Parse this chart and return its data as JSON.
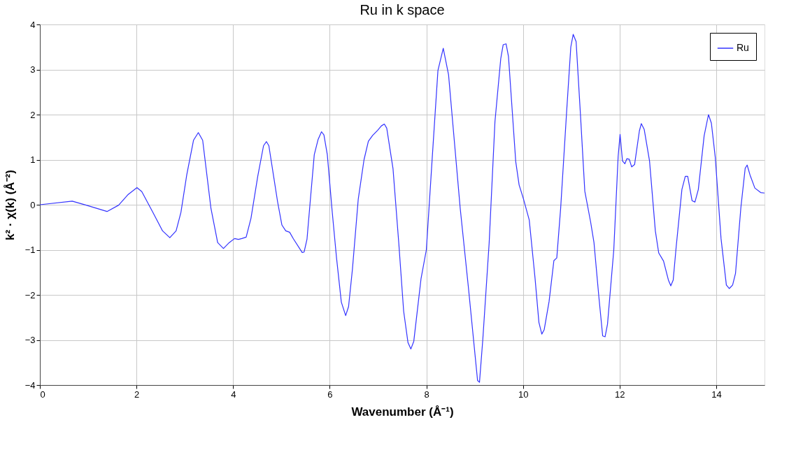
{
  "chart_data": {
    "type": "line",
    "title": "Ru in k space",
    "xlabel": "Wavenumber    (Å⁻¹)",
    "ylabel": "k² · χ(k)    (Å⁻²)",
    "xlim": [
      0,
      15
    ],
    "xticks": [
      0,
      2,
      4,
      6,
      8,
      10,
      12,
      14
    ],
    "ylim": [
      -4,
      4
    ],
    "yticks": [
      -4,
      -3,
      -2,
      -1,
      0,
      1,
      2,
      3,
      4
    ],
    "grid": true,
    "legend": "top right",
    "line_style": "solid",
    "marker": "none",
    "series": [
      {
        "name": "Ru",
        "color": "#3333ff",
        "x": [
          0,
          0.67,
          0.96,
          1.39,
          1.63,
          1.82,
          2.01,
          2.11,
          2.34,
          2.54,
          2.69,
          2.82,
          2.92,
          3.04,
          3.18,
          3.28,
          3.37,
          3.54,
          3.68,
          3.8,
          3.92,
          4.03,
          4.11,
          4.18,
          4.27,
          4.37,
          4.51,
          4.63,
          4.69,
          4.74,
          4.92,
          5.01,
          5.09,
          5.17,
          5.25,
          5.43,
          5.47,
          5.53,
          5.6,
          5.68,
          5.76,
          5.83,
          5.88,
          5.95,
          6.05,
          6.14,
          6.24,
          6.33,
          6.39,
          6.47,
          6.59,
          6.71,
          6.8,
          6.89,
          6.99,
          7.07,
          7.13,
          7.18,
          7.31,
          7.43,
          7.53,
          7.62,
          7.68,
          7.74,
          7.89,
          8.0,
          8.12,
          8.24,
          8.35,
          8.46,
          8.7,
          8.87,
          9.06,
          9.1,
          9.17,
          9.3,
          9.42,
          9.54,
          9.59,
          9.65,
          9.7,
          9.85,
          9.92,
          10.01,
          10.13,
          10.25,
          10.33,
          10.39,
          10.44,
          10.54,
          10.64,
          10.7,
          10.78,
          10.9,
          10.99,
          11.04,
          11.1,
          11.19,
          11.28,
          11.4,
          11.47,
          11.57,
          11.65,
          11.7,
          11.75,
          11.88,
          11.97,
          12.01,
          12.06,
          12.11,
          12.15,
          12.2,
          12.25,
          12.31,
          12.41,
          12.45,
          12.51,
          12.62,
          12.74,
          12.81,
          12.91,
          13.01,
          13.06,
          13.11,
          13.17,
          13.29,
          13.36,
          13.41,
          13.5,
          13.56,
          13.63,
          13.75,
          13.84,
          13.9,
          13.98,
          14.1,
          14.21,
          14.27,
          14.34,
          14.4,
          14.51,
          14.6,
          14.64,
          14.7,
          14.8,
          14.92,
          15
        ],
        "values": [
          0,
          0.08,
          -0.01,
          -0.15,
          -0.01,
          0.22,
          0.38,
          0.29,
          -0.17,
          -0.58,
          -0.73,
          -0.58,
          -0.17,
          0.66,
          1.43,
          1.6,
          1.43,
          -0.07,
          -0.84,
          -0.97,
          -0.84,
          -0.75,
          -0.77,
          -0.75,
          -0.72,
          -0.3,
          0.63,
          1.31,
          1.4,
          1.31,
          0.07,
          -0.45,
          -0.58,
          -0.61,
          -0.76,
          -1.06,
          -1.05,
          -0.76,
          0.12,
          1.11,
          1.45,
          1.62,
          1.55,
          1.11,
          -0.14,
          -1.17,
          -2.16,
          -2.46,
          -2.26,
          -1.43,
          0.12,
          1.0,
          1.41,
          1.54,
          1.65,
          1.75,
          1.79,
          1.7,
          0.8,
          -0.86,
          -2.36,
          -3.06,
          -3.2,
          -3.03,
          -1.64,
          -1.0,
          1.01,
          2.98,
          3.47,
          2.88,
          -0.07,
          -1.83,
          -3.9,
          -3.94,
          -2.97,
          -0.85,
          1.84,
          3.24,
          3.55,
          3.57,
          3.29,
          0.96,
          0.44,
          0.13,
          -0.34,
          -1.63,
          -2.61,
          -2.87,
          -2.77,
          -2.15,
          -1.24,
          -1.18,
          -0.08,
          2.0,
          3.5,
          3.78,
          3.62,
          2.0,
          0.3,
          -0.38,
          -0.84,
          -2.03,
          -2.91,
          -2.93,
          -2.65,
          -1.0,
          1.07,
          1.56,
          0.97,
          0.91,
          1.02,
          1.01,
          0.84,
          0.89,
          1.64,
          1.8,
          1.67,
          0.97,
          -0.58,
          -1.07,
          -1.25,
          -1.67,
          -1.8,
          -1.67,
          -0.95,
          0.34,
          0.63,
          0.63,
          0.09,
          0.06,
          0.34,
          1.53,
          2.0,
          1.81,
          1.06,
          -0.75,
          -1.78,
          -1.86,
          -1.78,
          -1.52,
          -0.07,
          0.81,
          0.88,
          0.66,
          0.37,
          0.27,
          0.26
        ]
      }
    ]
  }
}
